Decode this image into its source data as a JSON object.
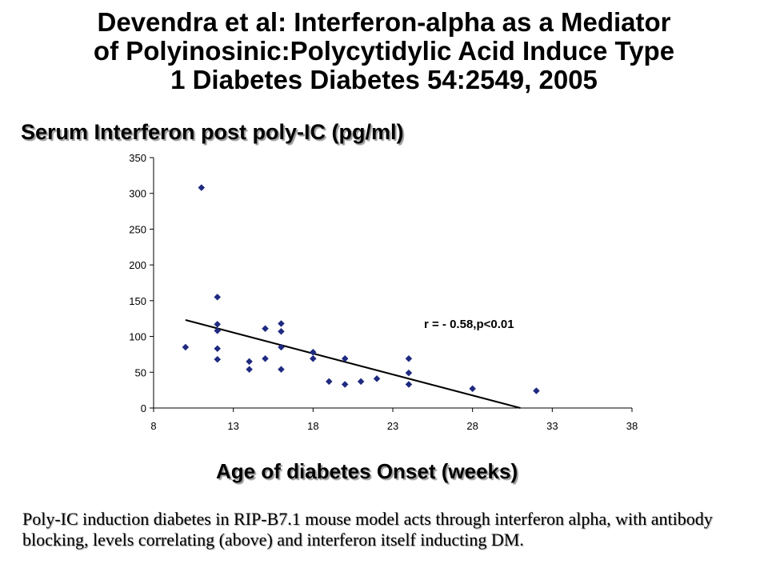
{
  "slide": {
    "title": "Devendra et al: Interferon-alpha as a Mediator\nof Polyinosinic:Polycytidylic Acid Induce Type\n1 Diabetes  Diabetes 54:2549, 2005",
    "chart_heading": "Serum Interferon post poly-IC (pg/ml)",
    "caption": "Poly-IC induction diabetes in RIP-B7.1 mouse model acts through interferon alpha, with antibody blocking, levels correlating (above) and interferon itself inducting DM."
  },
  "chart_data": {
    "type": "scatter",
    "title": "",
    "xlabel": "Age of diabetes Onset (weeks)",
    "ylabel": "",
    "xlim": [
      8,
      38
    ],
    "ylim": [
      0,
      350
    ],
    "xticks": [
      8,
      13,
      18,
      23,
      28,
      33,
      38
    ],
    "yticks": [
      0,
      50,
      100,
      150,
      200,
      250,
      300,
      350
    ],
    "x_tick_labels": [
      "8",
      "13",
      "18",
      "23",
      "28",
      "33",
      "38"
    ],
    "y_tick_labels": [
      "0",
      "50",
      "100",
      "150",
      "200",
      "250",
      "300",
      "350"
    ],
    "grid": false,
    "legend": "none",
    "marker": "diamond",
    "marker_color": "#1f2a80",
    "series": [
      {
        "points": [
          {
            "x": 10,
            "y": 85
          },
          {
            "x": 11,
            "y": 308
          },
          {
            "x": 12,
            "y": 155
          },
          {
            "x": 12,
            "y": 117
          },
          {
            "x": 12,
            "y": 108
          },
          {
            "x": 12,
            "y": 83
          },
          {
            "x": 12,
            "y": 68
          },
          {
            "x": 14,
            "y": 65
          },
          {
            "x": 14,
            "y": 54
          },
          {
            "x": 15,
            "y": 111
          },
          {
            "x": 15,
            "y": 69
          },
          {
            "x": 16,
            "y": 118
          },
          {
            "x": 16,
            "y": 107
          },
          {
            "x": 16,
            "y": 85
          },
          {
            "x": 16,
            "y": 54
          },
          {
            "x": 18,
            "y": 78
          },
          {
            "x": 18,
            "y": 69
          },
          {
            "x": 19,
            "y": 37
          },
          {
            "x": 20,
            "y": 69
          },
          {
            "x": 20,
            "y": 33
          },
          {
            "x": 21,
            "y": 37
          },
          {
            "x": 22,
            "y": 41
          },
          {
            "x": 24,
            "y": 69
          },
          {
            "x": 24,
            "y": 49
          },
          {
            "x": 24,
            "y": 33
          },
          {
            "x": 28,
            "y": 27
          },
          {
            "x": 32,
            "y": 24
          }
        ]
      }
    ],
    "trendline": {
      "x": [
        10,
        31
      ],
      "y": [
        123,
        0
      ],
      "color": "#000000"
    },
    "annotation": "r = - 0.58,p<0.01"
  }
}
